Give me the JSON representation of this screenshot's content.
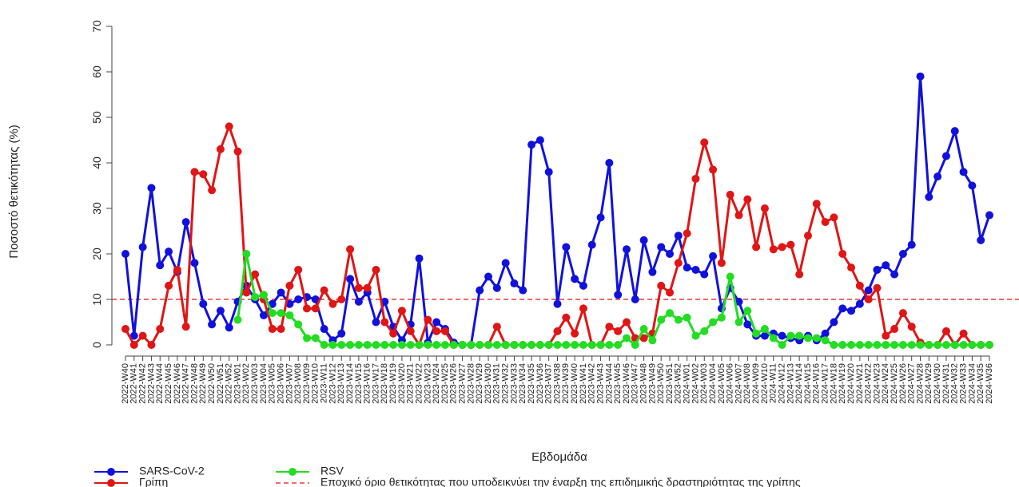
{
  "chart_data": {
    "type": "line",
    "y_label": "Ποσοστό θετικότητας (%)",
    "x_label": "Εβδομάδα",
    "categories": [
      "2022-W40",
      "2022-W41",
      "2022-W42",
      "2022-W43",
      "2022-W44",
      "2022-W45",
      "2022-W46",
      "2022-W47",
      "2022-W48",
      "2022-W49",
      "2022-W50",
      "2022-W51",
      "2022-W52",
      "2023-W01",
      "2023-W02",
      "2023-W03",
      "2023-W04",
      "2023-W05",
      "2023-W06",
      "2023-W07",
      "2023-W08",
      "2023-W09",
      "2023-W10",
      "2023-W11",
      "2023-W12",
      "2023-W13",
      "2023-W14",
      "2023-W15",
      "2023-W16",
      "2023-W17",
      "2023-W18",
      "2023-W19",
      "2023-W20",
      "2023-W21",
      "2023-W22",
      "2023-W23",
      "2023-W24",
      "2023-W25",
      "2023-W26",
      "2023-W27",
      "2023-W28",
      "2023-W29",
      "2023-W30",
      "2023-W31",
      "2023-W32",
      "2023-W33",
      "2023-W34",
      "2023-W35",
      "2023-W36",
      "2023-W37",
      "2023-W38",
      "2023-W39",
      "2023-W40",
      "2023-W41",
      "2023-W42",
      "2023-W43",
      "2023-W44",
      "2023-W45",
      "2023-W46",
      "2023-W47",
      "2023-W48",
      "2023-W49",
      "2023-W50",
      "2023-W51",
      "2023-W52",
      "2024-W01",
      "2024-W02",
      "2024-W03",
      "2024-W04",
      "2024-W05",
      "2024-W06",
      "2024-W07",
      "2024-W08",
      "2024-W09",
      "2024-W10",
      "2024-W11",
      "2024-W12",
      "2024-W13",
      "2024-W14",
      "2024-W15",
      "2024-W16",
      "2024-W17",
      "2024-W18",
      "2024-W19",
      "2024-W20",
      "2024-W21",
      "2024-W22",
      "2024-W23",
      "2024-W24",
      "2024-W25",
      "2024-W26",
      "2024-W27",
      "2024-W28",
      "2024-W29",
      "2024-W30",
      "2024-W31",
      "2024-W32",
      "2024-W33",
      "2024-W34",
      "2024-W35",
      "2024-W36"
    ],
    "series": [
      {
        "name": "SARS-CoV-2",
        "color": "#1111dd",
        "values": [
          20,
          2,
          21.5,
          34.5,
          17.5,
          20.5,
          16,
          27,
          18,
          9,
          4.5,
          7.5,
          3.8,
          9.5,
          13,
          10,
          6.5,
          9,
          11.5,
          9,
          10,
          10.5,
          10,
          3.5,
          1,
          2.5,
          14.5,
          9.5,
          11.5,
          5,
          9.5,
          4,
          1,
          4.5,
          19,
          0.5,
          5,
          3.5,
          0.5,
          0,
          0,
          12,
          15,
          12.5,
          18,
          13.5,
          12,
          44,
          45,
          38,
          9,
          21.5,
          14.5,
          13,
          22,
          28,
          40,
          11,
          21,
          10,
          23,
          16,
          21.5,
          20,
          24,
          17,
          16.5,
          15.5,
          19.5,
          8,
          12.5,
          9.5,
          4.5,
          2,
          2,
          2.5,
          2,
          1.5,
          1,
          2,
          1,
          2.5,
          5,
          8,
          7.5,
          9,
          12,
          16.5,
          17.5,
          15.5,
          20,
          22,
          59,
          32.5,
          37,
          41.5,
          47,
          38,
          35,
          23,
          28.5
        ]
      },
      {
        "name": "Γρίπη",
        "color": "#e01515",
        "values": [
          3.5,
          0,
          2,
          0,
          3.5,
          13,
          16.5,
          4,
          38,
          37.5,
          34,
          43,
          48,
          42.5,
          11.5,
          15.5,
          10,
          3.5,
          3.5,
          13,
          16.5,
          8,
          8,
          12,
          9,
          10,
          21,
          12.5,
          12.5,
          16.5,
          5,
          2.5,
          7.5,
          3,
          0,
          5.5,
          3,
          3,
          0,
          0,
          0,
          0,
          0,
          4,
          0,
          0,
          0,
          0,
          0,
          0,
          3,
          6,
          2.5,
          8,
          0,
          0,
          4,
          3,
          5,
          1.5,
          1.5,
          2.5,
          13,
          11.5,
          18,
          24.5,
          36.5,
          44.5,
          38.5,
          18,
          33,
          28.5,
          32,
          21.5,
          30,
          21,
          21.5,
          22,
          15.5,
          24,
          31,
          27,
          28,
          20,
          17,
          13,
          10,
          12.5,
          2,
          3.5,
          7,
          4,
          0.5,
          0,
          0,
          3,
          0,
          2.5,
          0,
          0,
          0
        ]
      },
      {
        "name": "RSV",
        "color": "#22dd22",
        "values": [
          null,
          null,
          null,
          null,
          null,
          null,
          null,
          null,
          null,
          null,
          null,
          null,
          null,
          5.5,
          20,
          10.5,
          11,
          7,
          7,
          6.5,
          4.5,
          1.5,
          1.5,
          0,
          0,
          0,
          0,
          0,
          0,
          0,
          0,
          0,
          0,
          0,
          0,
          0,
          0,
          0,
          0,
          0,
          0,
          0,
          0,
          0,
          0,
          0,
          0,
          0,
          0,
          0,
          0,
          0,
          0,
          0,
          0,
          0,
          0,
          0,
          1.5,
          0,
          3.5,
          1,
          5.5,
          7,
          5.5,
          6,
          2,
          3,
          5,
          6,
          15,
          5,
          7.5,
          2.5,
          3.5,
          1.5,
          0,
          2,
          2,
          1.5,
          1.5,
          1,
          0,
          0,
          0,
          0,
          0,
          0,
          0,
          0,
          0,
          0,
          0,
          0,
          0,
          0,
          0,
          0,
          0,
          0,
          0
        ]
      }
    ],
    "threshold": {
      "value": 10,
      "color": "#e01515",
      "label": "Εποχικό όριο θετικότητας που υποδεικνύει την έναρξη της επιδημικής δραστηριότητας της γρίπης"
    },
    "ylim": [
      0,
      70
    ],
    "yticks": [
      0,
      10,
      20,
      30,
      40,
      50,
      60,
      70
    ]
  }
}
